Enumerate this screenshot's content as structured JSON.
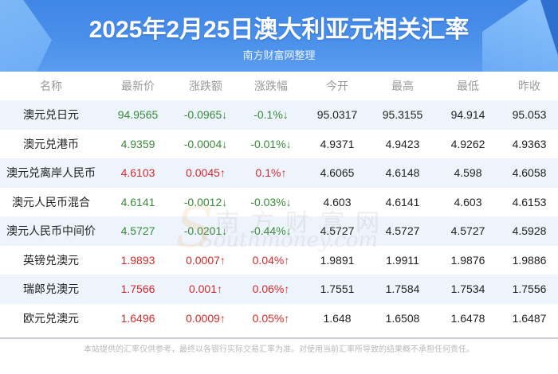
{
  "header": {
    "title": "2025年2月25日澳大利亚元相关汇率",
    "subtitle": "南方财富网整理"
  },
  "table": {
    "columns": [
      "名称",
      "最新价",
      "涨跌额",
      "涨跌幅",
      "今开",
      "最高",
      "最低",
      "昨收"
    ],
    "rows": [
      {
        "name": "澳元兑日元",
        "latest": "94.9565",
        "change": "-0.0965↓",
        "change_pct": "-0.1%↓",
        "open": "95.0317",
        "high": "95.3155",
        "low": "94.914",
        "prev_close": "95.053",
        "direction": "down"
      },
      {
        "name": "澳元兑港币",
        "latest": "4.9359",
        "change": "-0.0004↓",
        "change_pct": "-0.01%↓",
        "open": "4.9371",
        "high": "4.9423",
        "low": "4.9262",
        "prev_close": "4.9363",
        "direction": "down"
      },
      {
        "name": "澳元兑离岸人民币",
        "latest": "4.6103",
        "change": "0.0045↑",
        "change_pct": "0.1%↑",
        "open": "4.6065",
        "high": "4.6148",
        "low": "4.598",
        "prev_close": "4.6058",
        "direction": "up"
      },
      {
        "name": "澳元人民币混合",
        "latest": "4.6141",
        "change": "-0.0012↓",
        "change_pct": "-0.03%↓",
        "open": "4.603",
        "high": "4.6141",
        "low": "4.603",
        "prev_close": "4.6153",
        "direction": "down"
      },
      {
        "name": "澳元人民币中间价",
        "latest": "4.5727",
        "change": "-0.0201↓",
        "change_pct": "-0.44%↓",
        "open": "4.5727",
        "high": "4.5727",
        "low": "4.5727",
        "prev_close": "4.5928",
        "direction": "down"
      },
      {
        "name": "英镑兑澳元",
        "latest": "1.9893",
        "change": "0.0007↑",
        "change_pct": "0.04%↑",
        "open": "1.9891",
        "high": "1.9911",
        "low": "1.9876",
        "prev_close": "1.9886",
        "direction": "up"
      },
      {
        "name": "瑞郎兑澳元",
        "latest": "1.7566",
        "change": "0.001↑",
        "change_pct": "0.06%↑",
        "open": "1.7551",
        "high": "1.7584",
        "low": "1.7534",
        "prev_close": "1.7556",
        "direction": "up"
      },
      {
        "name": "欧元兑澳元",
        "latest": "1.6496",
        "change": "0.0009↑",
        "change_pct": "0.05%↑",
        "open": "1.648",
        "high": "1.6508",
        "low": "1.6478",
        "prev_close": "1.6487",
        "direction": "up"
      }
    ]
  },
  "watermark": {
    "cn": "南方财富网",
    "en": "Southmoney.com",
    "s": "S"
  },
  "footer": {
    "disclaimer": "本站提供的汇率仅供参考，最终以各银行实际交易汇率为准。对使用当前汇率所导致的结果概不承担任何责任。"
  },
  "colors": {
    "up": "#d22a2a",
    "down": "#3a8a3a",
    "banner": "#4a90ea",
    "row_alt": "#eef4fb"
  }
}
